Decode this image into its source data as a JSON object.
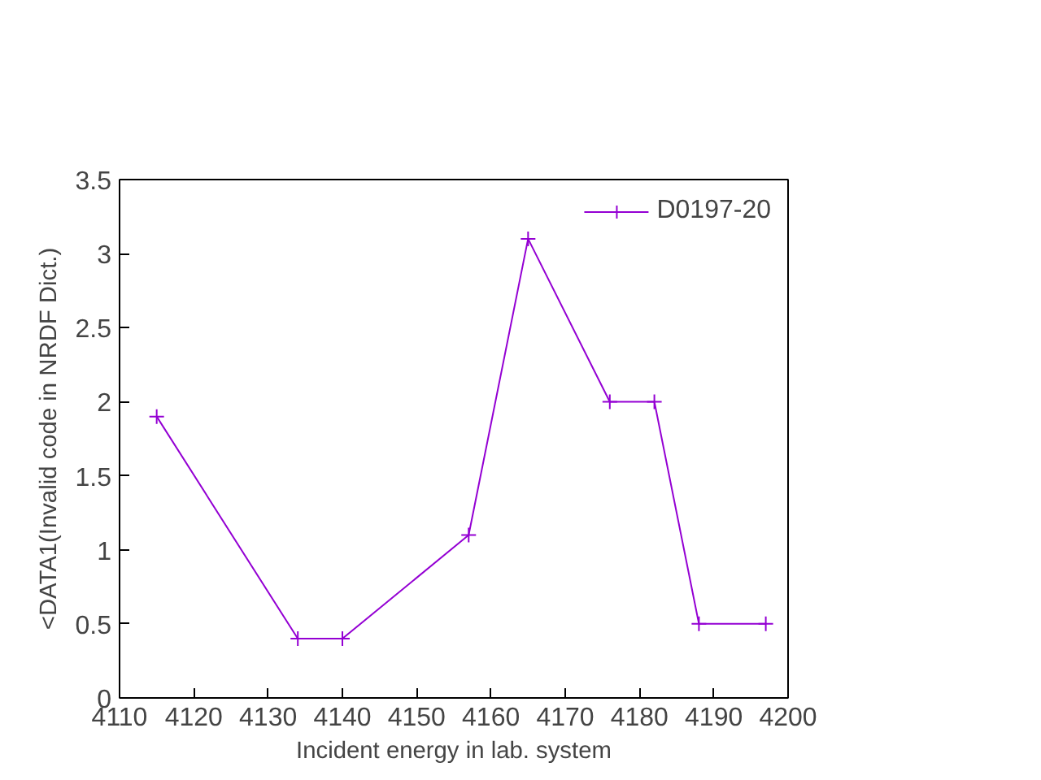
{
  "chart_data": {
    "type": "line",
    "xlabel": "Incident energy in lab. system",
    "ylabel": "<DATA1(Invalid code in NRDF Dict.)",
    "x": [
      4115,
      4134,
      4140,
      4157,
      4165,
      4176,
      4182,
      4188,
      4197
    ],
    "series": [
      {
        "name": "D0197-20",
        "color": "#9400d3",
        "values": [
          1.9,
          0.4,
          0.4,
          1.1,
          3.1,
          2.0,
          2.0,
          0.5,
          0.5
        ]
      }
    ],
    "xlim": [
      4110,
      4200
    ],
    "xticks": [
      4110,
      4120,
      4130,
      4140,
      4150,
      4160,
      4170,
      4180,
      4190,
      4200
    ],
    "ylim": [
      0,
      3.5
    ],
    "yticks": [
      0,
      {
        "value": 0.5,
        "label": "0.5"
      },
      1,
      {
        "value": 1.5,
        "label": "1.5"
      },
      2,
      {
        "value": 2.5,
        "label": "2.5"
      },
      3,
      {
        "value": 3.5,
        "label": "3.5"
      }
    ],
    "grid": false,
    "legend": "top right",
    "marker": "cross",
    "line_style": "solid"
  }
}
